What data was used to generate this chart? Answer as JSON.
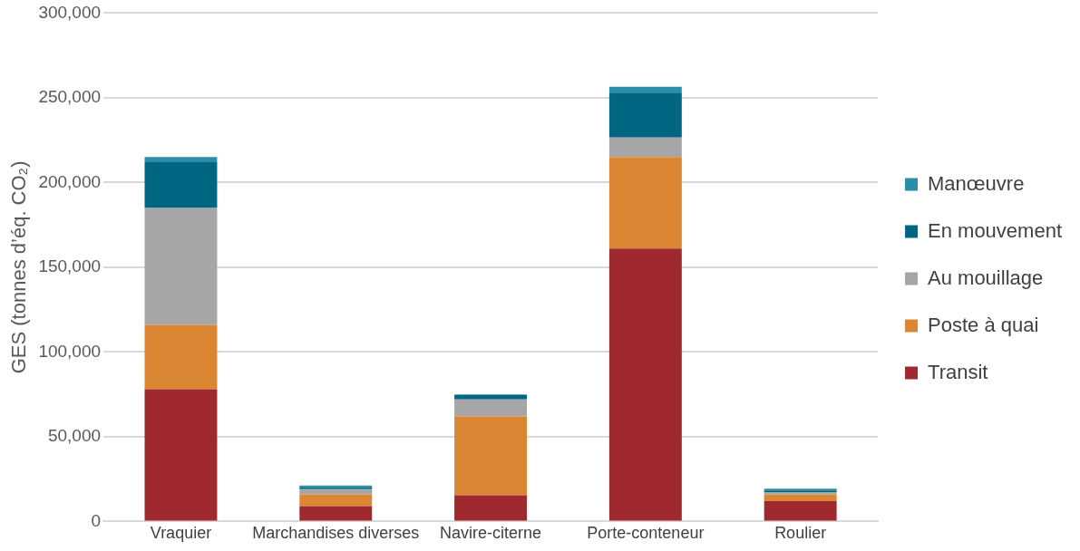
{
  "chart_data": {
    "type": "bar",
    "stacked": true,
    "ylabel": "GES (tonnes d’éq. CO₂)",
    "categories": [
      "Vraquier",
      "Marchandises diverses",
      "Navire-citerne",
      "Porte-conteneur",
      "Roulier"
    ],
    "series": [
      {
        "name": "Transit",
        "color": "#a0282f",
        "values": [
          78000,
          9000,
          15500,
          161000,
          12000
        ]
      },
      {
        "name": "Poste à quai",
        "color": "#db8632",
        "values": [
          38000,
          7000,
          46500,
          54000,
          4000
        ]
      },
      {
        "name": "Au mouillage",
        "color": "#a6a6a6",
        "values": [
          69000,
          3000,
          10000,
          11500,
          1300
        ]
      },
      {
        "name": "En mouvement",
        "color": "#006682",
        "values": [
          27000,
          1300,
          2500,
          26500,
          1000
        ]
      },
      {
        "name": "Manœuvre",
        "color": "#2a8ea8",
        "values": [
          3000,
          900,
          500,
          3500,
          1000
        ]
      }
    ],
    "ylim": [
      0,
      300000
    ],
    "yticks": [
      {
        "value": 0,
        "label": "0"
      },
      {
        "value": 50000,
        "label": "50,000"
      },
      {
        "value": 100000,
        "label": "100,000"
      },
      {
        "value": 150000,
        "label": "150,000"
      },
      {
        "value": 200000,
        "label": "200,000"
      },
      {
        "value": 250000,
        "label": "250,000"
      },
      {
        "value": 300000,
        "label": "300,000"
      }
    ],
    "grid": "y",
    "legend": "right"
  }
}
